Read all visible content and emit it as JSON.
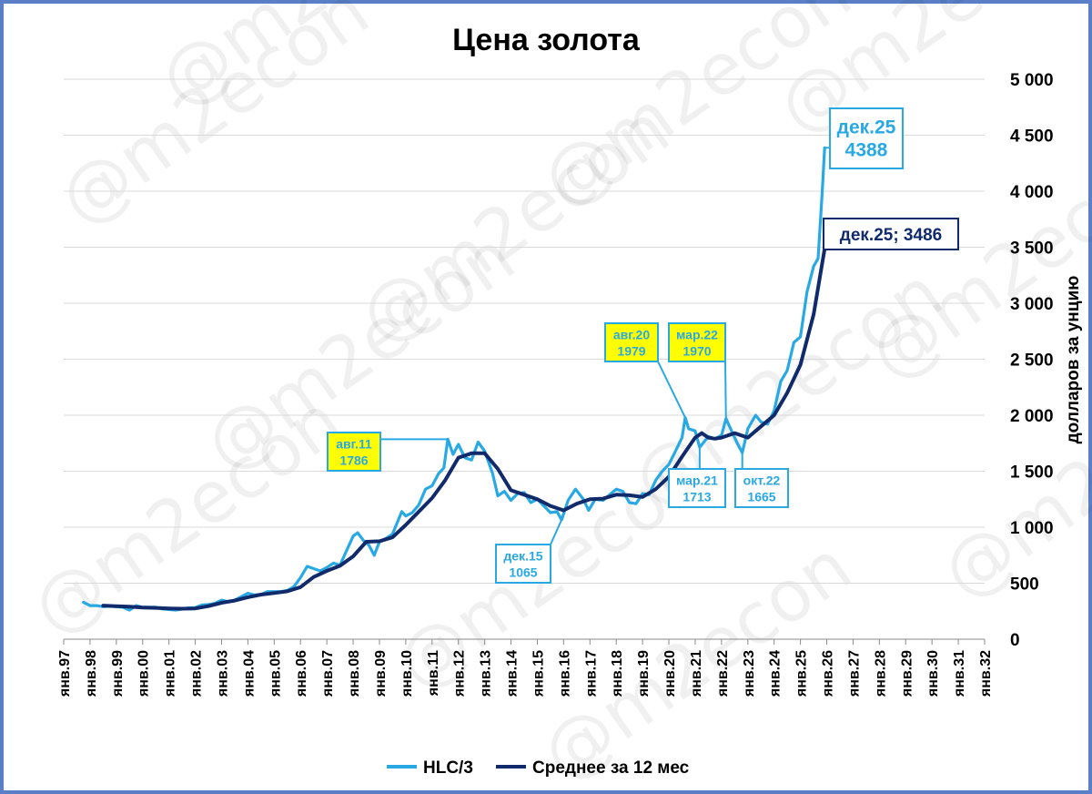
{
  "chart_data": {
    "type": "line",
    "title": "Цена золота",
    "ylabel": "долларов за унцию",
    "xlabel": "",
    "watermark": "@m2econ",
    "ylim": [
      0,
      5000
    ],
    "y_ticks": [
      "0",
      "500",
      "1 000",
      "1 500",
      "2 000",
      "2 500",
      "3 000",
      "3 500",
      "4 000",
      "4 500",
      "5 000"
    ],
    "x_ticks": [
      "янв.97",
      "янв.98",
      "янв.99",
      "янв.00",
      "янв.01",
      "янв.02",
      "янв.03",
      "янв.04",
      "янв.05",
      "янв.06",
      "янв.07",
      "янв.08",
      "янв.09",
      "янв.10",
      "янв.11",
      "янв.12",
      "янв.13",
      "янв.14",
      "янв.15",
      "янв.16",
      "янв.17",
      "янв.18",
      "янв.19",
      "янв.20",
      "янв.21",
      "янв.22",
      "янв.23",
      "янв.24",
      "янв.25",
      "янв.26",
      "янв.27",
      "янв.28",
      "янв.29",
      "янв.30",
      "янв.31",
      "янв.32"
    ],
    "x_range": [
      1997.0,
      2032.0
    ],
    "grid": "horizontal",
    "legend_position": "bottom",
    "series": [
      {
        "name": "HLC/3",
        "color": "#29a9e3",
        "points": [
          [
            1997.75,
            330
          ],
          [
            1998.0,
            300
          ],
          [
            1998.25,
            300
          ],
          [
            1998.5,
            290
          ],
          [
            1998.75,
            295
          ],
          [
            1999.0,
            290
          ],
          [
            1999.25,
            285
          ],
          [
            1999.5,
            260
          ],
          [
            1999.75,
            300
          ],
          [
            2000.0,
            285
          ],
          [
            2000.25,
            285
          ],
          [
            2000.5,
            285
          ],
          [
            2000.75,
            270
          ],
          [
            2001.0,
            265
          ],
          [
            2001.25,
            260
          ],
          [
            2001.5,
            268
          ],
          [
            2001.75,
            280
          ],
          [
            2002.0,
            282
          ],
          [
            2002.25,
            305
          ],
          [
            2002.5,
            310
          ],
          [
            2002.75,
            320
          ],
          [
            2003.0,
            350
          ],
          [
            2003.25,
            335
          ],
          [
            2003.5,
            350
          ],
          [
            2003.75,
            380
          ],
          [
            2004.0,
            410
          ],
          [
            2004.25,
            395
          ],
          [
            2004.5,
            400
          ],
          [
            2004.75,
            425
          ],
          [
            2005.0,
            425
          ],
          [
            2005.25,
            425
          ],
          [
            2005.5,
            435
          ],
          [
            2005.75,
            470
          ],
          [
            2006.0,
            550
          ],
          [
            2006.25,
            650
          ],
          [
            2006.5,
            630
          ],
          [
            2006.75,
            610
          ],
          [
            2007.0,
            640
          ],
          [
            2007.25,
            680
          ],
          [
            2007.5,
            660
          ],
          [
            2007.75,
            790
          ],
          [
            2008.0,
            920
          ],
          [
            2008.17,
            950
          ],
          [
            2008.4,
            880
          ],
          [
            2008.6,
            840
          ],
          [
            2008.8,
            750
          ],
          [
            2009.0,
            870
          ],
          [
            2009.25,
            900
          ],
          [
            2009.5,
            940
          ],
          [
            2009.85,
            1140
          ],
          [
            2010.0,
            1100
          ],
          [
            2010.25,
            1130
          ],
          [
            2010.5,
            1200
          ],
          [
            2010.75,
            1340
          ],
          [
            2011.0,
            1370
          ],
          [
            2011.25,
            1480
          ],
          [
            2011.45,
            1530
          ],
          [
            2011.6,
            1786
          ],
          [
            2011.8,
            1650
          ],
          [
            2012.0,
            1740
          ],
          [
            2012.25,
            1620
          ],
          [
            2012.5,
            1600
          ],
          [
            2012.75,
            1760
          ],
          [
            2013.0,
            1680
          ],
          [
            2013.3,
            1480
          ],
          [
            2013.5,
            1280
          ],
          [
            2013.75,
            1320
          ],
          [
            2014.0,
            1240
          ],
          [
            2014.25,
            1300
          ],
          [
            2014.5,
            1310
          ],
          [
            2014.75,
            1220
          ],
          [
            2015.0,
            1250
          ],
          [
            2015.25,
            1190
          ],
          [
            2015.5,
            1130
          ],
          [
            2015.75,
            1140
          ],
          [
            2015.92,
            1065
          ],
          [
            2016.17,
            1240
          ],
          [
            2016.45,
            1340
          ],
          [
            2016.75,
            1250
          ],
          [
            2016.95,
            1150
          ],
          [
            2017.2,
            1250
          ],
          [
            2017.5,
            1240
          ],
          [
            2017.75,
            1290
          ],
          [
            2018.0,
            1340
          ],
          [
            2018.25,
            1320
          ],
          [
            2018.5,
            1220
          ],
          [
            2018.75,
            1210
          ],
          [
            2019.0,
            1300
          ],
          [
            2019.25,
            1290
          ],
          [
            2019.5,
            1420
          ],
          [
            2019.75,
            1500
          ],
          [
            2020.0,
            1560
          ],
          [
            2020.25,
            1680
          ],
          [
            2020.5,
            1800
          ],
          [
            2020.62,
            1979
          ],
          [
            2020.75,
            1880
          ],
          [
            2021.0,
            1860
          ],
          [
            2021.17,
            1713
          ],
          [
            2021.5,
            1810
          ],
          [
            2021.75,
            1790
          ],
          [
            2022.0,
            1820
          ],
          [
            2022.17,
            1970
          ],
          [
            2022.4,
            1850
          ],
          [
            2022.6,
            1750
          ],
          [
            2022.79,
            1665
          ],
          [
            2023.0,
            1880
          ],
          [
            2023.3,
            2000
          ],
          [
            2023.5,
            1940
          ],
          [
            2023.75,
            1920
          ],
          [
            2024.0,
            2040
          ],
          [
            2024.25,
            2300
          ],
          [
            2024.5,
            2400
          ],
          [
            2024.75,
            2650
          ],
          [
            2025.0,
            2700
          ],
          [
            2025.25,
            3100
          ],
          [
            2025.5,
            3330
          ],
          [
            2025.67,
            3400
          ],
          [
            2025.83,
            4000
          ],
          [
            2025.92,
            4388
          ]
        ]
      },
      {
        "name": "Среднее за 12 мес",
        "color": "#102a6b",
        "points": [
          [
            1998.5,
            300
          ],
          [
            1999.0,
            295
          ],
          [
            1999.5,
            290
          ],
          [
            2000.0,
            282
          ],
          [
            2000.5,
            280
          ],
          [
            2001.0,
            275
          ],
          [
            2001.5,
            272
          ],
          [
            2002.0,
            275
          ],
          [
            2002.5,
            295
          ],
          [
            2003.0,
            325
          ],
          [
            2003.5,
            345
          ],
          [
            2004.0,
            375
          ],
          [
            2004.5,
            398
          ],
          [
            2005.0,
            412
          ],
          [
            2005.5,
            428
          ],
          [
            2006.0,
            465
          ],
          [
            2006.5,
            555
          ],
          [
            2007.0,
            610
          ],
          [
            2007.5,
            655
          ],
          [
            2008.0,
            740
          ],
          [
            2008.5,
            870
          ],
          [
            2009.0,
            875
          ],
          [
            2009.5,
            910
          ],
          [
            2010.0,
            1020
          ],
          [
            2010.5,
            1140
          ],
          [
            2011.0,
            1260
          ],
          [
            2011.5,
            1420
          ],
          [
            2012.0,
            1620
          ],
          [
            2012.5,
            1660
          ],
          [
            2013.0,
            1660
          ],
          [
            2013.5,
            1520
          ],
          [
            2014.0,
            1330
          ],
          [
            2014.5,
            1290
          ],
          [
            2015.0,
            1250
          ],
          [
            2015.5,
            1190
          ],
          [
            2016.0,
            1150
          ],
          [
            2016.5,
            1210
          ],
          [
            2017.0,
            1250
          ],
          [
            2017.5,
            1255
          ],
          [
            2018.0,
            1290
          ],
          [
            2018.5,
            1285
          ],
          [
            2019.0,
            1270
          ],
          [
            2019.5,
            1340
          ],
          [
            2020.0,
            1450
          ],
          [
            2020.5,
            1630
          ],
          [
            2021.0,
            1800
          ],
          [
            2021.25,
            1840
          ],
          [
            2021.5,
            1800
          ],
          [
            2021.75,
            1790
          ],
          [
            2022.0,
            1800
          ],
          [
            2022.5,
            1840
          ],
          [
            2023.0,
            1800
          ],
          [
            2023.5,
            1900
          ],
          [
            2024.0,
            2000
          ],
          [
            2024.5,
            2200
          ],
          [
            2025.0,
            2450
          ],
          [
            2025.5,
            2900
          ],
          [
            2025.92,
            3486
          ]
        ]
      }
    ],
    "callouts": [
      {
        "label": "авг.11",
        "value": "1786",
        "x": 2011.58,
        "y": 1786,
        "style": "yellow"
      },
      {
        "label": "авг.20",
        "value": "1979",
        "x": 2020.62,
        "y": 1979,
        "style": "yellow"
      },
      {
        "label": "мар.22",
        "value": "1970",
        "x": 2022.17,
        "y": 1970,
        "style": "yellow"
      },
      {
        "label": "дек.15",
        "value": "1065",
        "x": 2015.92,
        "y": 1065,
        "style": "blue"
      },
      {
        "label": "мар.21",
        "value": "1713",
        "x": 2021.17,
        "y": 1713,
        "style": "blue"
      },
      {
        "label": "окт.22",
        "value": "1665",
        "x": 2022.79,
        "y": 1665,
        "style": "blue"
      },
      {
        "label": "дек.25",
        "value": "4388",
        "x": 2025.92,
        "y": 4388,
        "style": "blue-big"
      },
      {
        "label": "дек.25; 3486",
        "value": "",
        "x": 2025.92,
        "y": 3486,
        "style": "navy"
      }
    ]
  }
}
